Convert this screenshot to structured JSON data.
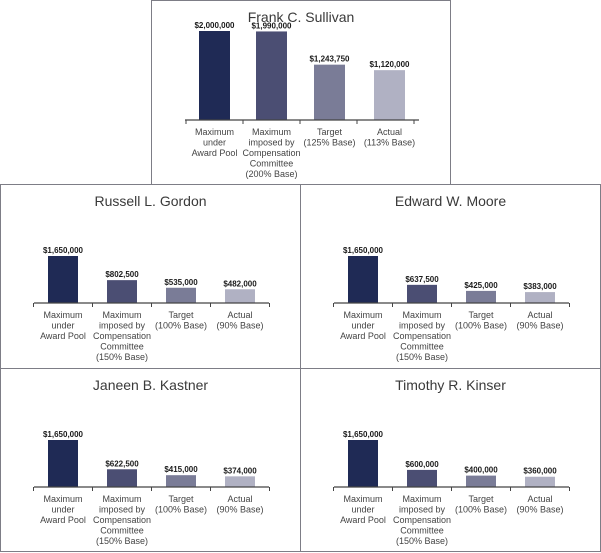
{
  "colors": [
    "#1f2a55",
    "#4b4e73",
    "#7a7c97",
    "#b0b1c3"
  ],
  "chart_data": [
    {
      "type": "bar",
      "title": "Frank C. Sullivan",
      "categories": [
        "Maximum under Award Pool",
        "Maximum imposed by Compensation Committee (200% Base)",
        "Target (125% Base)",
        "Actual (113% Base)"
      ],
      "category_lines": [
        [
          "Maximum",
          "under",
          "Award Pool"
        ],
        [
          "Maximum",
          "imposed by",
          "Compensation",
          "Committee",
          "(200% Base)"
        ],
        [
          "Target",
          "(125% Base)"
        ],
        [
          "Actual",
          "(113% Base)"
        ]
      ],
      "values": [
        2000000,
        1990000,
        1243750,
        1120000
      ],
      "value_labels": [
        "$2,000,000",
        "$1,990,000",
        "$1,243,750",
        "$1,120,000"
      ],
      "ylim": [
        0,
        2000000
      ]
    },
    {
      "type": "bar",
      "title": "Russell L. Gordon",
      "categories": [
        "Maximum under Award Pool",
        "Maximum imposed by Compensation Committee (150% Base)",
        "Target (100% Base)",
        "Actual (90% Base)"
      ],
      "category_lines": [
        [
          "Maximum",
          "under",
          "Award Pool"
        ],
        [
          "Maximum",
          "imposed by",
          "Compensation",
          "Committee",
          "(150% Base)"
        ],
        [
          "Target",
          "(100% Base)"
        ],
        [
          "Actual",
          "(90% Base)"
        ]
      ],
      "values": [
        1650000,
        802500,
        535000,
        482000
      ],
      "value_labels": [
        "$1,650,000",
        "$802,500",
        "$535,000",
        "$482,000"
      ],
      "ylim": [
        0,
        1650000
      ]
    },
    {
      "type": "bar",
      "title": "Edward W. Moore",
      "categories": [
        "Maximum under Award Pool",
        "Maximum imposed by Compensation Committee (150% Base)",
        "Target (100% Base)",
        "Actual (90% Base)"
      ],
      "category_lines": [
        [
          "Maximum",
          "under",
          "Award Pool"
        ],
        [
          "Maximum",
          "imposed by",
          "Compensation",
          "Committee",
          "(150% Base)"
        ],
        [
          "Target",
          "(100% Base)"
        ],
        [
          "Actual",
          "(90% Base)"
        ]
      ],
      "values": [
        1650000,
        637500,
        425000,
        383000
      ],
      "value_labels": [
        "$1,650,000",
        "$637,500",
        "$425,000",
        "$383,000"
      ],
      "ylim": [
        0,
        1650000
      ]
    },
    {
      "type": "bar",
      "title": "Janeen B. Kastner",
      "categories": [
        "Maximum under Award Pool",
        "Maximum imposed by Compensation Committee (150% Base)",
        "Target (100% Base)",
        "Actual (90% Base)"
      ],
      "category_lines": [
        [
          "Maximum",
          "under",
          "Award Pool"
        ],
        [
          "Maximum",
          "imposed by",
          "Compensation",
          "Committee",
          "(150% Base)"
        ],
        [
          "Target",
          "(100% Base)"
        ],
        [
          "Actual",
          "(90% Base)"
        ]
      ],
      "values": [
        1650000,
        622500,
        415000,
        374000
      ],
      "value_labels": [
        "$1,650,000",
        "$622,500",
        "$415,000",
        "$374,000"
      ],
      "ylim": [
        0,
        1650000
      ]
    },
    {
      "type": "bar",
      "title": "Timothy R. Kinser",
      "categories": [
        "Maximum under Award Pool",
        "Maximum imposed by Compensation Committee (150% Base)",
        "Target (100% Base)",
        "Actual (90% Base)"
      ],
      "category_lines": [
        [
          "Maximum",
          "under",
          "Award Pool"
        ],
        [
          "Maximum",
          "imposed by",
          "Compensation",
          "Committee",
          "(150% Base)"
        ],
        [
          "Target",
          "(100% Base)"
        ],
        [
          "Actual",
          "(90% Base)"
        ]
      ],
      "values": [
        1650000,
        600000,
        400000,
        360000
      ],
      "value_labels": [
        "$1,650,000",
        "$600,000",
        "$400,000",
        "$360,000"
      ],
      "ylim": [
        0,
        1650000
      ]
    }
  ]
}
